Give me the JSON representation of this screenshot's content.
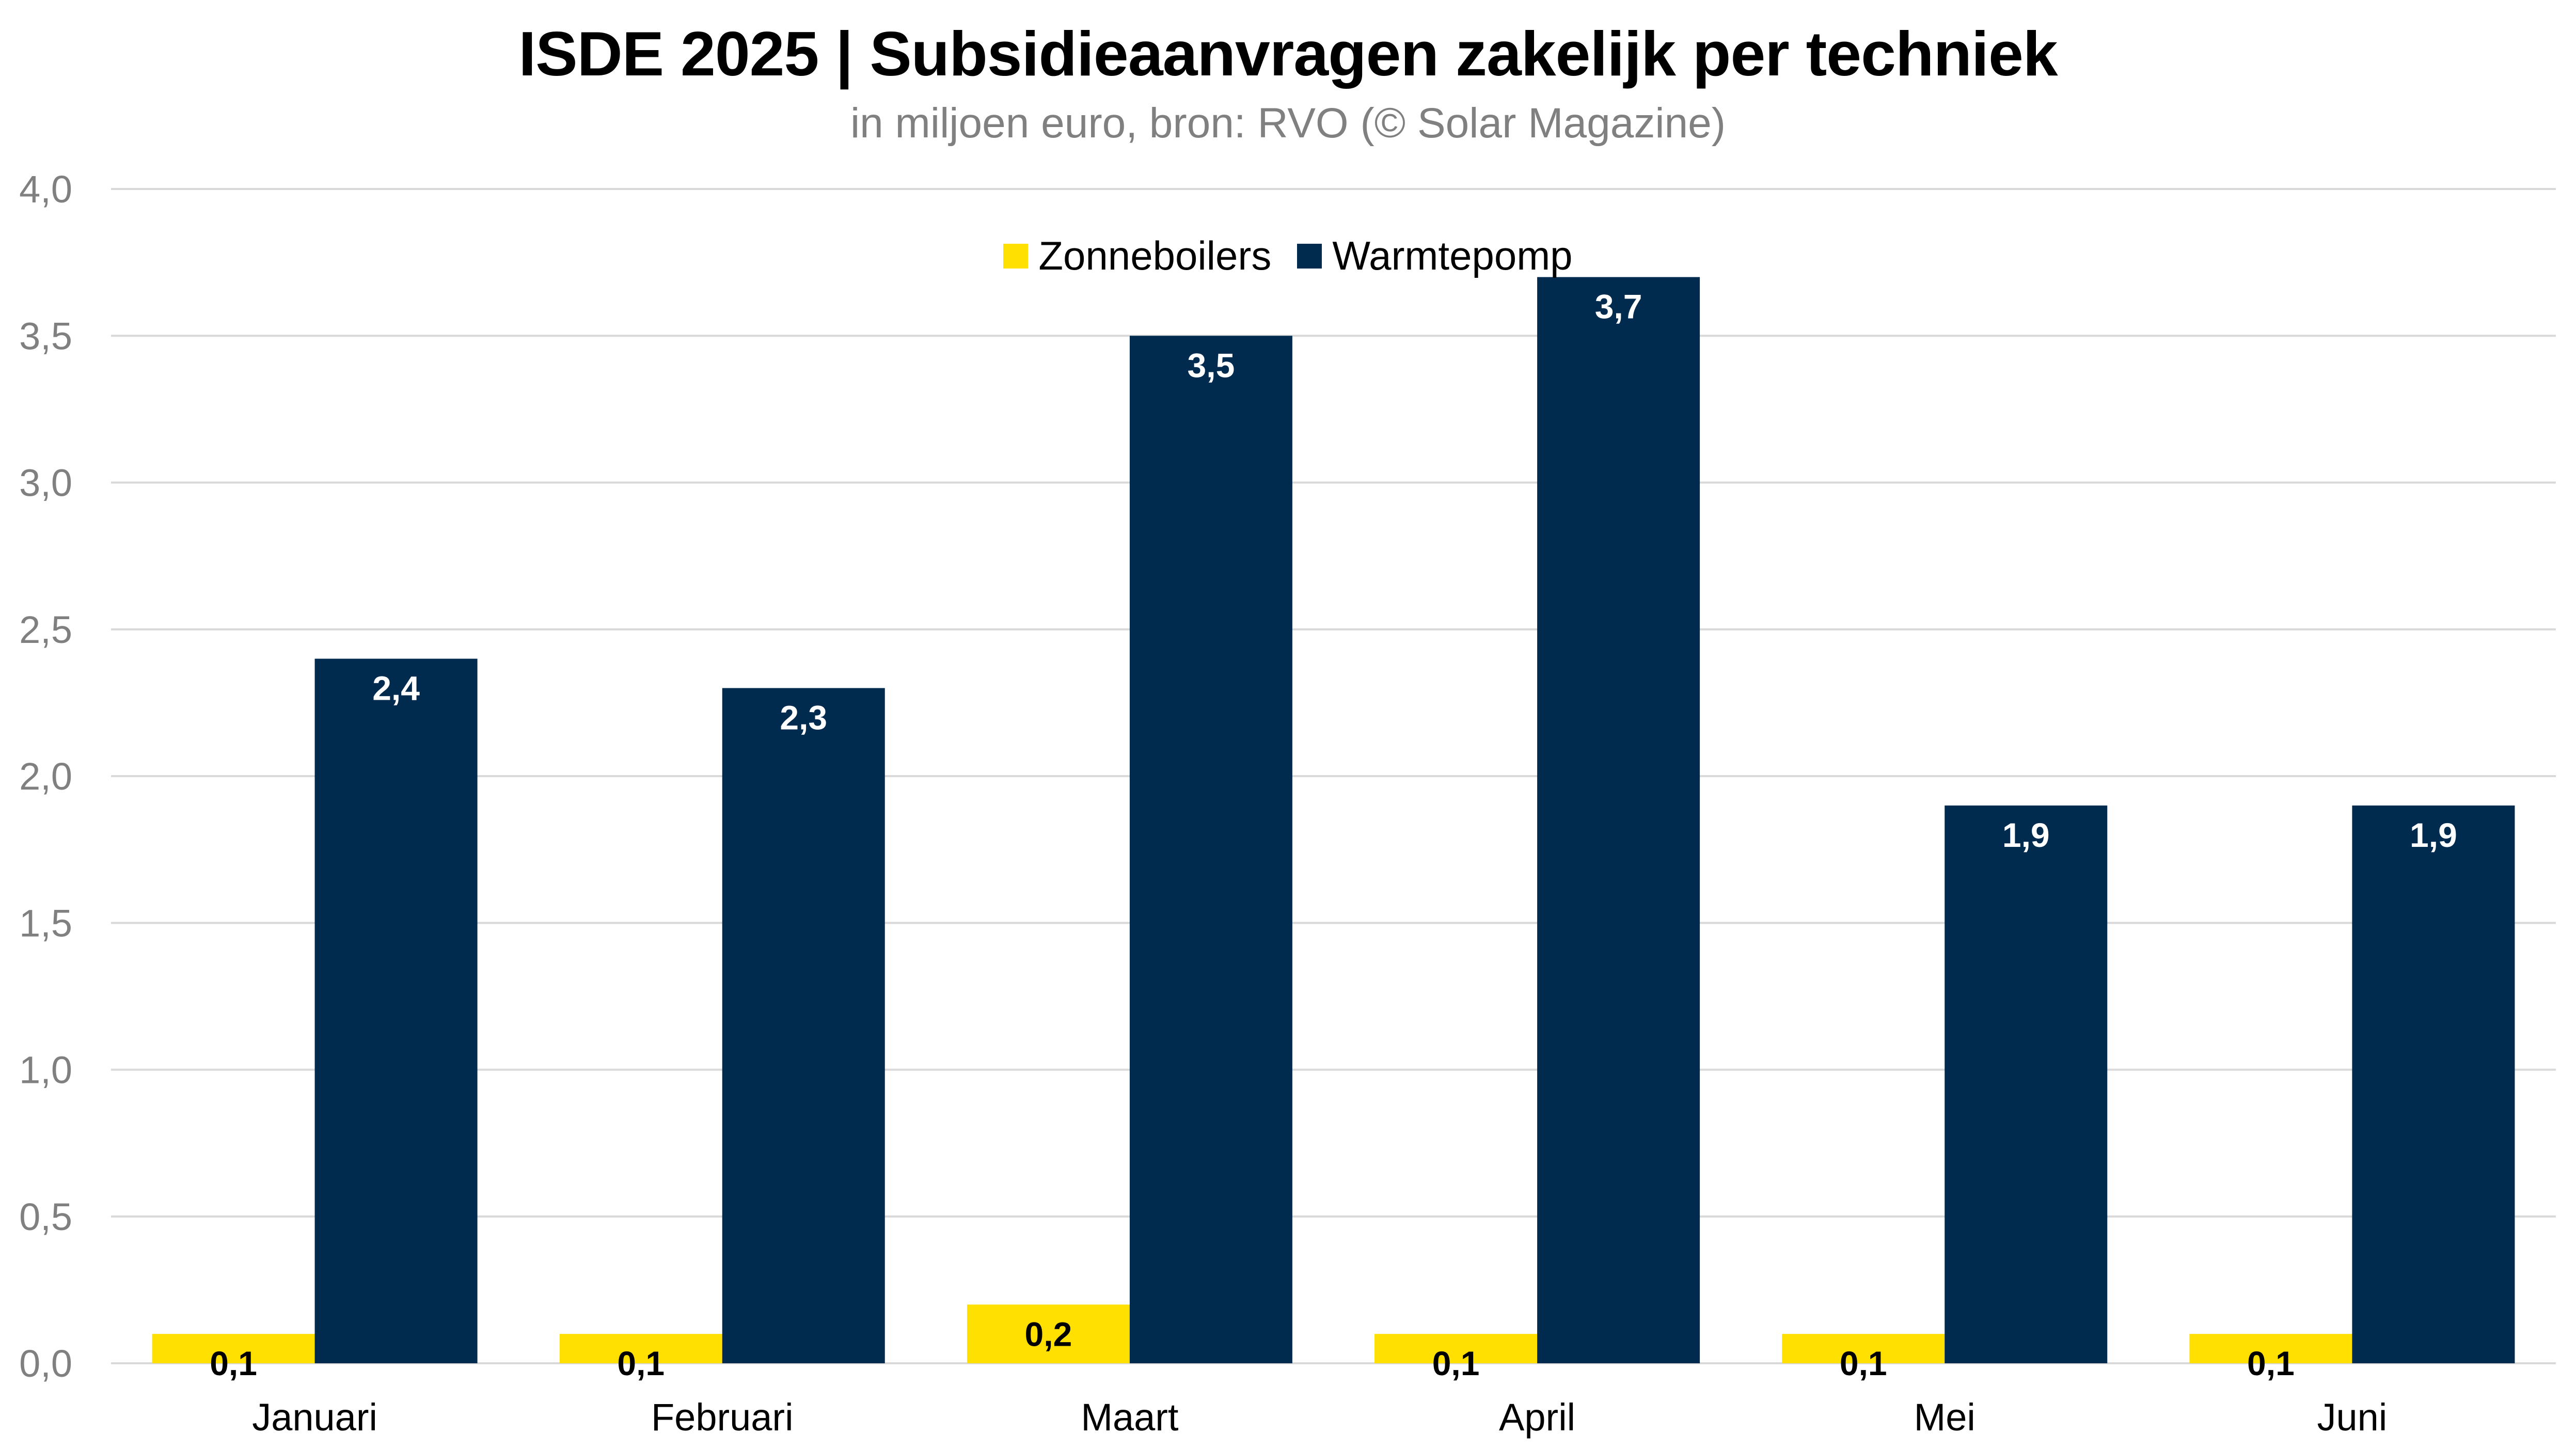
{
  "chart_data": {
    "type": "bar",
    "title": "ISDE 2025 | Subsidieaanvragen zakelijk per techniek",
    "subtitle": "in miljoen euro, bron: RVO (© Solar Magazine)",
    "categories": [
      "Januari",
      "Februari",
      "Maart",
      "April",
      "Mei",
      "Juni"
    ],
    "series": [
      {
        "name": "Zonneboilers",
        "color": "#FFE000",
        "label_color": "#000000",
        "values": [
          0.1,
          0.1,
          0.2,
          0.1,
          0.1,
          0.1
        ],
        "labels": [
          "0,1",
          "0,1",
          "0,2",
          "0,1",
          "0,1",
          "0,1"
        ]
      },
      {
        "name": "Warmtepomp",
        "color": "#002B4F",
        "label_color": "#FFFFFF",
        "values": [
          2.4,
          2.3,
          3.5,
          3.7,
          1.9,
          1.9
        ],
        "labels": [
          "2,4",
          "2,3",
          "3,5",
          "3,7",
          "1,9",
          "1,9"
        ]
      }
    ],
    "ylim": [
      0,
      4.0
    ],
    "yticks": [
      0,
      0.5,
      1.0,
      1.5,
      2.0,
      2.5,
      3.0,
      3.5,
      4.0
    ],
    "ytick_labels": [
      "0,0",
      "0,5",
      "1,0",
      "1,5",
      "2,0",
      "2,5",
      "3,0",
      "3,5",
      "4,0"
    ],
    "xlabel": "",
    "ylabel": "",
    "grid": true,
    "legend_position": "top-center",
    "gridline_color": "#D9D9D9",
    "axis_label_color": "#808080",
    "category_label_color": "#000000"
  }
}
